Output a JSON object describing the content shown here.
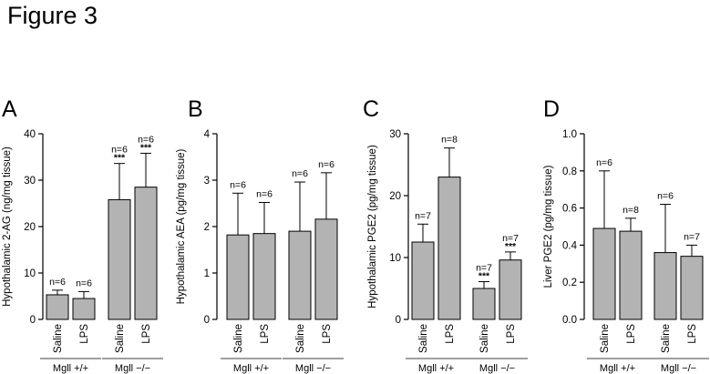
{
  "figure_title": "Figure 3",
  "chart_data": [
    {
      "type": "bar",
      "panel_label": "A",
      "ylabel": "Hypothalamic 2-AG (ng/mg tissue)",
      "ylim": [
        0,
        40
      ],
      "yticks": [
        "0",
        "10",
        "20",
        "30",
        "40"
      ],
      "categories": [
        "Saline",
        "LPS",
        "Saline",
        "LPS"
      ],
      "groups": [
        "Mgll +/+",
        "Mgll −/−"
      ],
      "values": [
        5.3,
        4.5,
        25.8,
        28.5
      ],
      "errors": [
        1.0,
        1.5,
        7.8,
        7.3
      ],
      "n_labels": [
        "n=6",
        "n=6",
        "n=6",
        "n=6"
      ],
      "significance": [
        "",
        "",
        "***",
        "***"
      ]
    },
    {
      "type": "bar",
      "panel_label": "B",
      "ylabel": "Hypothalamic AEA (pg/mg tissue)",
      "ylim": [
        0,
        4
      ],
      "yticks": [
        "0",
        "1",
        "2",
        "3",
        "4"
      ],
      "categories": [
        "Saline",
        "LPS",
        "Saline",
        "LPS"
      ],
      "groups": [
        "Mgll +/+",
        "Mgll −/−"
      ],
      "values": [
        1.82,
        1.85,
        1.9,
        2.16
      ],
      "errors": [
        0.9,
        0.67,
        1.06,
        1.0
      ],
      "n_labels": [
        "n=6",
        "n=6",
        "n=6",
        "n=6"
      ],
      "significance": [
        "",
        "",
        "",
        ""
      ]
    },
    {
      "type": "bar",
      "panel_label": "C",
      "ylabel": "Hypothalamic PGE2 (pg/mg tissue)",
      "ylim": [
        0,
        30
      ],
      "yticks": [
        "0",
        "10",
        "20",
        "30"
      ],
      "categories": [
        "Saline",
        "LPS",
        "Saline",
        "LPS"
      ],
      "groups": [
        "Mgll +/+",
        "Mgll −/−"
      ],
      "values": [
        12.5,
        23.0,
        5.0,
        9.6
      ],
      "errors": [
        2.9,
        4.7,
        1.1,
        1.3
      ],
      "n_labels": [
        "n=7",
        "n=8",
        "n=7",
        "n=7"
      ],
      "significance": [
        "",
        "",
        "***",
        "***"
      ]
    },
    {
      "type": "bar",
      "panel_label": "D",
      "ylabel": "Liver PGE2 (pg/mg tissue)",
      "ylim": [
        0,
        1.0
      ],
      "yticks": [
        "0.0",
        "0.2",
        "0.4",
        "0.6",
        "0.8",
        "1.0"
      ],
      "categories": [
        "Saline",
        "LPS",
        "Saline",
        "LPS"
      ],
      "groups": [
        "Mgll +/+",
        "Mgll −/−"
      ],
      "values": [
        0.49,
        0.475,
        0.36,
        0.34
      ],
      "errors": [
        0.31,
        0.07,
        0.26,
        0.06
      ],
      "n_labels": [
        "n=6",
        "n=8",
        "n=6",
        "n=7"
      ],
      "significance": [
        "",
        "",
        "",
        ""
      ]
    }
  ],
  "colors": {
    "bar_fill": "#b3b3b3",
    "line": "#000000",
    "group_rule": "#808080"
  }
}
